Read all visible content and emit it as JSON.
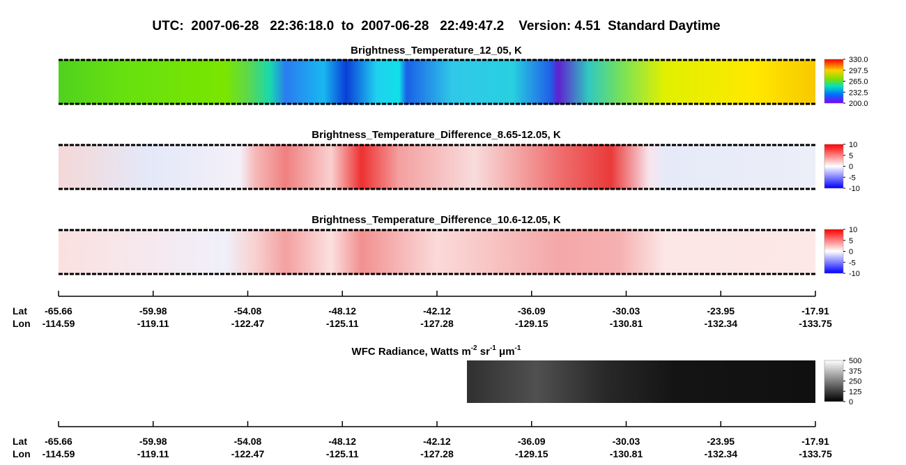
{
  "title": "UTC:  2007-06-28   22:36:18.0  to  2007-06-28   22:49:47.2    Version: 4.51  Standard Daytime",
  "panels": [
    {
      "title": "Brightness_Temperature_12_05, K",
      "colorbar_ticks": [
        {
          "value": 330,
          "label": "330.0"
        },
        {
          "value": 297.5,
          "label": "297.5"
        },
        {
          "value": 265,
          "label": "265.0"
        },
        {
          "value": 232.5,
          "label": "232.5"
        },
        {
          "value": 200,
          "label": "200.0"
        }
      ]
    },
    {
      "title": "Brightness_Temperature_Difference_8.65-12.05, K",
      "colorbar_ticks": [
        10,
        5,
        0,
        -5,
        -10
      ]
    },
    {
      "title": "Brightness_Temperature_Difference_10.6-12.05, K",
      "colorbar_ticks": [
        10,
        5,
        0,
        -5,
        -10
      ]
    },
    {
      "title_parts": [
        "WFC Radiance, Watts m",
        "-2",
        " sr",
        "-1",
        " μm",
        "-1"
      ],
      "colorbar_ticks": [
        500,
        375,
        250,
        125,
        0
      ]
    }
  ],
  "axes": [
    {
      "lat_label": "Lat",
      "lon_label": "Lon",
      "lat": [
        "-65.66",
        "-59.98",
        "-54.08",
        "-48.12",
        "-42.12",
        "-36.09",
        "-30.03",
        "-23.95",
        "-17.91"
      ],
      "lon": [
        "-114.59",
        "-119.11",
        "-122.47",
        "-125.11",
        "-127.28",
        "-129.15",
        "-130.81",
        "-132.34",
        "-133.75"
      ]
    },
    {
      "lat_label": "Lat",
      "lon_label": "Lon",
      "lat": [
        "-65.66",
        "-59.98",
        "-54.08",
        "-48.12",
        "-42.12",
        "-36.09",
        "-30.03",
        "-23.95",
        "-17.91"
      ],
      "lon": [
        "-114.59",
        "-119.11",
        "-122.47",
        "-125.11",
        "-127.28",
        "-129.15",
        "-130.81",
        "-132.34",
        "-133.75"
      ]
    }
  ]
}
